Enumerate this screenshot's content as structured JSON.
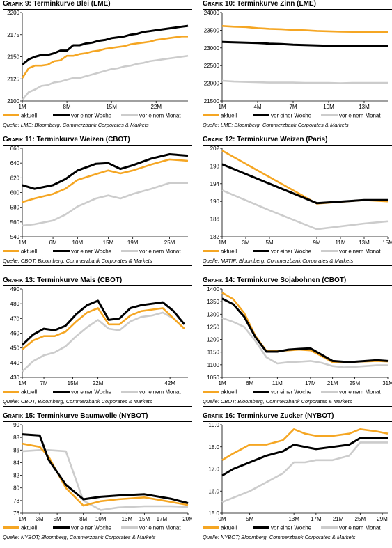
{
  "colors": {
    "aktuell": "#f5a623",
    "woche": "#000000",
    "monat": "#cccccc"
  },
  "legend_labels": {
    "aktuell": "aktuell",
    "woche": "vor einer Woche",
    "monat": "vor einem Monat"
  },
  "chart_data": [
    {
      "type": "line",
      "title_prefix": "Grafik 9:",
      "title_rest": "Terminkurve Blei (LME)",
      "source": "Quelle: LME; Bloomberg, Commerzbank Corporates & Markets",
      "yticks": [
        2100,
        2125,
        2150,
        2175,
        2200
      ],
      "xticks": [
        {
          "x": 1,
          "label": "1M"
        },
        {
          "x": 8,
          "label": "8M"
        },
        {
          "x": 15,
          "label": "15M"
        },
        {
          "x": 22,
          "label": "22M"
        }
      ],
      "xrange": [
        1,
        27
      ],
      "ylim": [
        2100,
        2200
      ],
      "x": [
        1,
        2,
        3,
        4,
        5,
        6,
        7,
        8,
        9,
        10,
        11,
        12,
        13,
        14,
        15,
        16,
        17,
        18,
        19,
        20,
        21,
        22,
        23,
        24,
        25,
        26,
        27
      ],
      "series": [
        {
          "key": "aktuell",
          "name": "aktuell",
          "values": [
            2126,
            2137,
            2140,
            2140,
            2141,
            2145,
            2146,
            2151,
            2151,
            2153,
            2154,
            2156,
            2157,
            2159,
            2160,
            2161,
            2162,
            2164,
            2165,
            2166,
            2167,
            2169,
            2170,
            2171,
            2172,
            2173,
            2173
          ]
        },
        {
          "key": "woche",
          "name": "vor einer Woche",
          "values": [
            2141,
            2147,
            2150,
            2152,
            2152,
            2154,
            2157,
            2157,
            2163,
            2163,
            2165,
            2166,
            2168,
            2169,
            2171,
            2172,
            2173,
            2175,
            2176,
            2178,
            2179,
            2180,
            2181,
            2182,
            2183,
            2184,
            2185
          ]
        },
        {
          "key": "monat",
          "name": "vor einem Monat",
          "values": [
            2101,
            2110,
            2113,
            2117,
            2118,
            2121,
            2122,
            2124,
            2126,
            2126,
            2128,
            2130,
            2132,
            2134,
            2136,
            2137,
            2139,
            2140,
            2142,
            2143,
            2145,
            2146,
            2147,
            2148,
            2149,
            2150,
            2151
          ]
        }
      ],
      "pos": {
        "left": 4,
        "top": 0
      }
    },
    {
      "type": "line",
      "title_prefix": "Grafik 10:",
      "title_rest": "Terminkurve Zinn (LME)",
      "source": "Quelle: LME; Bloomberg, Commerzbank Corporates & Markets",
      "yticks": [
        21500,
        22000,
        22500,
        23000,
        23500,
        24000
      ],
      "xticks": [
        {
          "x": 1,
          "label": "1M"
        },
        {
          "x": 4,
          "label": "4M"
        },
        {
          "x": 7,
          "label": "7M"
        },
        {
          "x": 10,
          "label": "10M"
        },
        {
          "x": 13,
          "label": "13M"
        }
      ],
      "xrange": [
        1,
        15
      ],
      "ylim": [
        21500,
        24000
      ],
      "x": [
        1,
        2,
        3,
        4,
        5,
        6,
        7,
        8,
        9,
        10,
        11,
        12,
        13,
        14,
        15
      ],
      "series": [
        {
          "key": "aktuell",
          "name": "aktuell",
          "values": [
            23620,
            23600,
            23590,
            23560,
            23540,
            23530,
            23510,
            23500,
            23480,
            23470,
            23460,
            23455,
            23450,
            23450,
            23450
          ]
        },
        {
          "key": "woche",
          "name": "vor einer Woche",
          "values": [
            23170,
            23160,
            23150,
            23140,
            23120,
            23110,
            23090,
            23080,
            23070,
            23060,
            23060,
            23060,
            23060,
            23060,
            23060
          ]
        },
        {
          "key": "monat",
          "name": "vor einem Monat",
          "values": [
            22070,
            22050,
            22040,
            22030,
            22020,
            22020,
            22020,
            22010,
            22010,
            22010,
            22000,
            22010,
            22010,
            22010,
            22010
          ]
        }
      ],
      "pos": {
        "left": 291,
        "top": 0
      }
    },
    {
      "type": "line",
      "title_prefix": "Grafik 11:",
      "title_rest": "Terminkurve Weizen (CBOT)",
      "source": "Quelle: CBOT; Bloomberg, Commerzbank Corporates & Markets",
      "yticks": [
        540,
        560,
        580,
        600,
        620,
        640,
        660
      ],
      "xticks": [
        {
          "x": 1,
          "label": "1M"
        },
        {
          "x": 6,
          "label": "6M"
        },
        {
          "x": 10,
          "label": "10M"
        },
        {
          "x": 15,
          "label": "15M"
        },
        {
          "x": 19,
          "label": "19M"
        },
        {
          "x": 25,
          "label": "25M"
        }
      ],
      "xrange": [
        1,
        28
      ],
      "ylim": [
        540,
        660
      ],
      "x": [
        1,
        3,
        6,
        8,
        10,
        13,
        15,
        17,
        19,
        22,
        25,
        28
      ],
      "series": [
        {
          "key": "aktuell",
          "name": "aktuell",
          "values": [
            587,
            592,
            598,
            605,
            617,
            625,
            630,
            626,
            630,
            638,
            645,
            643
          ]
        },
        {
          "key": "woche",
          "name": "vor einer Woche",
          "values": [
            610,
            605,
            610,
            618,
            630,
            639,
            640,
            632,
            637,
            646,
            652,
            650
          ]
        },
        {
          "key": "monat",
          "name": "vor einem Monat",
          "values": [
            555,
            557,
            562,
            570,
            581,
            592,
            596,
            592,
            598,
            605,
            613,
            613
          ]
        }
      ],
      "pos": {
        "left": 4,
        "top": 195
      }
    },
    {
      "type": "line",
      "title_prefix": "Grafik 12:",
      "title_rest": "Terminkurve Weizen (Paris)",
      "source": "Quelle: MATIF; Bloomberg, Commerzbank Corporates & Markets",
      "yticks": [
        182,
        186,
        190,
        194,
        198,
        202
      ],
      "xticks": [
        {
          "x": 1,
          "label": "1M"
        },
        {
          "x": 3,
          "label": "3M"
        },
        {
          "x": 5,
          "label": "5M"
        },
        {
          "x": 9,
          "label": "9M"
        },
        {
          "x": 11,
          "label": "11M"
        },
        {
          "x": 13,
          "label": "13M"
        },
        {
          "x": 15,
          "label": "15M"
        }
      ],
      "xrange": [
        1,
        15
      ],
      "ylim": [
        182,
        202
      ],
      "x": [
        1,
        5,
        9,
        13,
        15
      ],
      "series": [
        {
          "key": "aktuell",
          "name": "aktuell",
          "values": [
            201.5,
            195.5,
            189.5,
            190.3,
            190.0
          ]
        },
        {
          "key": "woche",
          "name": "vor einer Woche",
          "values": [
            198.4,
            194.0,
            189.6,
            190.3,
            190.3
          ]
        },
        {
          "key": "monat",
          "name": "vor einem Monat",
          "values": [
            192.5,
            188.0,
            183.7,
            185.0,
            185.5
          ]
        }
      ],
      "pos": {
        "left": 291,
        "top": 195
      }
    },
    {
      "type": "line",
      "title_prefix": "Grafik 13:",
      "title_rest": "Terminkurve Mais (CBOT)",
      "source": "Quelle: CBOT; Bloomberg, Commerzbank Corporates & Markets",
      "yticks": [
        430,
        440,
        450,
        460,
        470,
        480,
        490
      ],
      "xticks": [
        {
          "x": 1,
          "label": "1M"
        },
        {
          "x": 7,
          "label": "7M"
        },
        {
          "x": 15,
          "label": "15M"
        },
        {
          "x": 22,
          "label": "22M"
        },
        {
          "x": 42,
          "label": "42M"
        }
      ],
      "xrange": [
        1,
        47
      ],
      "ylim": [
        430,
        490
      ],
      "x": [
        1,
        4,
        7,
        10,
        13,
        16,
        19,
        22,
        25,
        28,
        31,
        34,
        37,
        40,
        43,
        46
      ],
      "series": [
        {
          "key": "aktuell",
          "name": "aktuell",
          "values": [
            449,
            455,
            458,
            458,
            461,
            468,
            474,
            477,
            466,
            466,
            472,
            475,
            476,
            477,
            470,
            463
          ]
        },
        {
          "key": "woche",
          "name": "vor einer Woche",
          "values": [
            452,
            459,
            463,
            462,
            465,
            473,
            479,
            482,
            469,
            470,
            477,
            479,
            480,
            481,
            475,
            466
          ]
        },
        {
          "key": "monat",
          "name": "vor einem Monat",
          "values": [
            434,
            441,
            445,
            447,
            451,
            458,
            464,
            469,
            463,
            462,
            468,
            471,
            472,
            474,
            470,
            463
          ]
        }
      ],
      "pos": {
        "left": 4,
        "top": 397
      }
    },
    {
      "type": "line",
      "title_prefix": "Grafik 14:",
      "title_rest": "Terminkurve Sojabohnen (CBOT)",
      "source": "Quelle: CBOT; Bloomberg, Commerzbank Corporates & Markets",
      "yticks": [
        1050,
        1100,
        1150,
        1200,
        1250,
        1300,
        1350,
        1400
      ],
      "xticks": [
        {
          "x": 1,
          "label": "1M"
        },
        {
          "x": 6,
          "label": "6M"
        },
        {
          "x": 11,
          "label": "11M"
        },
        {
          "x": 17,
          "label": "17M"
        },
        {
          "x": 21,
          "label": "21M"
        },
        {
          "x": 25,
          "label": "25M"
        },
        {
          "x": 31,
          "label": "31M"
        }
      ],
      "xrange": [
        1,
        31
      ],
      "ylim": [
        1050,
        1400
      ],
      "x": [
        1,
        3,
        5,
        7,
        9,
        11,
        13,
        15,
        17,
        19,
        21,
        23,
        25,
        27,
        29,
        31
      ],
      "series": [
        {
          "key": "aktuell",
          "name": "aktuell",
          "values": [
            1385,
            1360,
            1305,
            1215,
            1155,
            1155,
            1157,
            1160,
            1157,
            1135,
            1110,
            1110,
            1112,
            1113,
            1115,
            1113
          ]
        },
        {
          "key": "woche",
          "name": "vor einer Woche",
          "values": [
            1362,
            1340,
            1290,
            1210,
            1152,
            1152,
            1160,
            1163,
            1165,
            1140,
            1115,
            1112,
            1112,
            1115,
            1118,
            1115
          ]
        },
        {
          "key": "monat",
          "name": "vor einem Monat",
          "values": [
            1285,
            1270,
            1250,
            1195,
            1130,
            1105,
            1110,
            1112,
            1115,
            1108,
            1095,
            1090,
            1092,
            1095,
            1098,
            1098
          ]
        }
      ],
      "pos": {
        "left": 291,
        "top": 397
      }
    },
    {
      "type": "line",
      "title_prefix": "Grafik 15:",
      "title_rest": "Terminkurve Baumwolle (NYBOT)",
      "source": "Quelle: NYBOT; Bloomberg, Commerzbank Corporates & Markets",
      "yticks": [
        76,
        78,
        80,
        82,
        84,
        86,
        88,
        90
      ],
      "xticks": [
        {
          "x": 1,
          "label": "1M"
        },
        {
          "x": 3,
          "label": "3M"
        },
        {
          "x": 5,
          "label": "5M"
        },
        {
          "x": 8,
          "label": "8M"
        },
        {
          "x": 10,
          "label": "10M"
        },
        {
          "x": 13,
          "label": "13M"
        },
        {
          "x": 15,
          "label": "15M"
        },
        {
          "x": 17,
          "label": "17M"
        },
        {
          "x": 20,
          "label": "20M"
        }
      ],
      "xrange": [
        1,
        20
      ],
      "ylim": [
        76,
        90
      ],
      "x": [
        1,
        3,
        4,
        6,
        8,
        10,
        12,
        15,
        18,
        20
      ],
      "series": [
        {
          "key": "aktuell",
          "name": "aktuell",
          "values": [
            87.0,
            86.5,
            85.0,
            80.0,
            77.2,
            77.9,
            78.2,
            78.5,
            77.8,
            77.3
          ]
        },
        {
          "key": "woche",
          "name": "vor einer Woche",
          "values": [
            88.5,
            88.3,
            84.5,
            80.5,
            78.2,
            78.6,
            78.8,
            79.0,
            78.3,
            77.6
          ]
        },
        {
          "key": "monat",
          "name": "vor einem Monat",
          "values": [
            85.8,
            86.0,
            86.0,
            85.8,
            78.0,
            76.5,
            76.9,
            77.1,
            77.1,
            77.0
          ]
        }
      ],
      "pos": {
        "left": 4,
        "top": 592
      }
    },
    {
      "type": "line",
      "title_prefix": "Grafik 16:",
      "title_rest": "Terminkurve Zucker (NYBOT)",
      "source": "Quelle: NYBOT; Bloomberg, Commerzbank Corporates & Markets",
      "yticks": [
        15.0,
        16.0,
        17.0,
        18.0,
        19.0
      ],
      "ytick_decimals": 1,
      "xticks": [
        {
          "x": 0,
          "label": "0M"
        },
        {
          "x": 5,
          "label": "5M"
        },
        {
          "x": 13,
          "label": "13M"
        },
        {
          "x": 17,
          "label": "17M"
        },
        {
          "x": 21,
          "label": "21M"
        },
        {
          "x": 25,
          "label": "25M"
        },
        {
          "x": 29,
          "label": "29M"
        }
      ],
      "xrange": [
        0,
        30
      ],
      "ylim": [
        15.0,
        19.0
      ],
      "x": [
        0,
        2,
        5,
        8,
        11,
        13,
        15,
        17,
        20,
        23,
        25,
        28,
        30
      ],
      "series": [
        {
          "key": "aktuell",
          "name": "aktuell",
          "values": [
            17.4,
            17.7,
            18.1,
            18.1,
            18.3,
            18.8,
            18.6,
            18.5,
            18.5,
            18.6,
            18.8,
            18.7,
            18.6
          ]
        },
        {
          "key": "woche",
          "name": "vor einer Woche",
          "values": [
            16.7,
            17.0,
            17.3,
            17.6,
            17.8,
            18.1,
            18.0,
            17.9,
            18.0,
            18.1,
            18.4,
            18.4,
            18.4
          ]
        },
        {
          "key": "monat",
          "name": "vor einem Monat",
          "values": [
            15.5,
            15.7,
            16.0,
            16.4,
            16.8,
            17.3,
            17.3,
            17.4,
            17.4,
            17.6,
            18.2,
            18.2,
            18.2
          ]
        }
      ],
      "pos": {
        "left": 291,
        "top": 592
      }
    }
  ]
}
